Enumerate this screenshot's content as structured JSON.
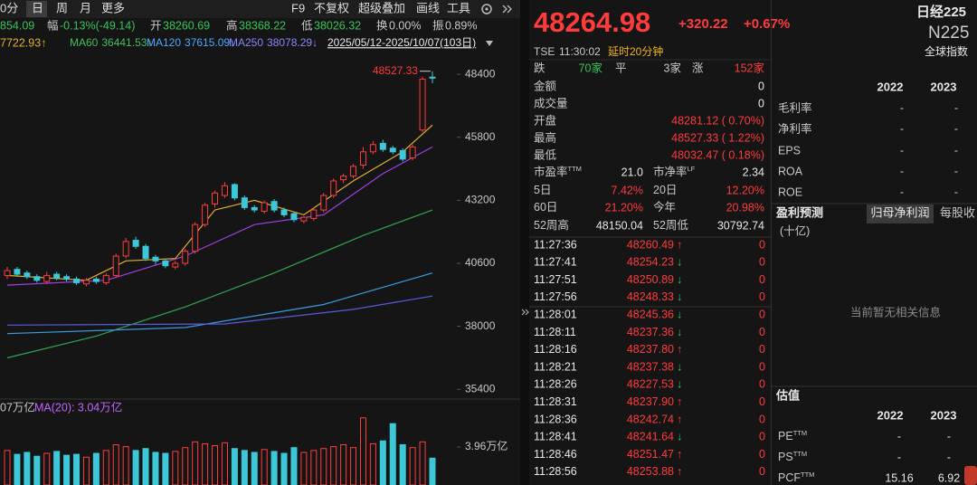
{
  "toolbar": {
    "periods": [
      "0分",
      "日",
      "周",
      "月",
      "更多"
    ],
    "tools": [
      "F9",
      "不复权",
      "超级叠加",
      "画线",
      "工具"
    ]
  },
  "stats_bar": {
    "last": "854.09",
    "items": [
      {
        "label": "幅",
        "value": "-0.13%(-49.14)"
      },
      {
        "label": "开",
        "value": "38260.69"
      },
      {
        "label": "高",
        "value": "38368.22"
      },
      {
        "label": "低",
        "value": "38026.32"
      },
      {
        "label": "换",
        "value": "0.00%"
      },
      {
        "label": "振",
        "value": "0.89%"
      }
    ]
  },
  "ma_legend": {
    "first": {
      "text": "7722.93↑",
      "color": "#e0b030"
    },
    "items": [
      {
        "label": "MA60",
        "value": "36441.53↑",
        "color": "#3fbf5f"
      },
      {
        "label": "MA120",
        "value": "37615.09↓",
        "color": "#4aa8ff"
      },
      {
        "label": "MA250",
        "value": "38078.29↓",
        "color": "#8a86ff"
      }
    ],
    "range": "2025/05/12-2025/10/07(103日)"
  },
  "chart_data": [
    {
      "type": "candlestick",
      "open": [
        40100,
        40350,
        40200,
        40050,
        39850,
        40150,
        40050,
        39950,
        39750,
        39950,
        39800,
        40100,
        40900,
        41550,
        41300,
        40850,
        40700,
        40450,
        40600,
        41100,
        42200,
        43050,
        43400,
        43850,
        43300,
        42900,
        42750,
        43150,
        42800,
        42650,
        42350,
        42450,
        42800,
        43400,
        44050,
        44200,
        44650,
        45200,
        45550,
        45350,
        45250,
        44950,
        46100,
        48281.12
      ],
      "high": [
        40450,
        40450,
        40300,
        40150,
        40250,
        40250,
        40150,
        40050,
        40000,
        40050,
        40200,
        41000,
        41650,
        41700,
        41400,
        40950,
        40800,
        40700,
        41200,
        42300,
        43100,
        43600,
        43950,
        43900,
        43400,
        43000,
        43200,
        43250,
        42900,
        42700,
        42550,
        42900,
        43500,
        44100,
        44300,
        44700,
        45400,
        45650,
        45700,
        45450,
        45350,
        45500,
        48300,
        48527.33
      ],
      "low": [
        39950,
        40050,
        39950,
        39800,
        39750,
        39900,
        39850,
        39700,
        39650,
        39750,
        39700,
        40000,
        40800,
        41200,
        40700,
        40550,
        40400,
        40350,
        40500,
        41000,
        42100,
        42900,
        43300,
        43200,
        42800,
        42700,
        42650,
        42700,
        42500,
        42300,
        42250,
        42350,
        42700,
        43300,
        43900,
        44100,
        44500,
        45100,
        45200,
        45100,
        44800,
        44850,
        46000,
        48032.47
      ],
      "close": [
        40300,
        40150,
        40050,
        39900,
        40100,
        40000,
        39950,
        39800,
        39900,
        39850,
        40100,
        40900,
        41500,
        41300,
        40800,
        40700,
        40500,
        40600,
        41100,
        42200,
        43000,
        43500,
        43800,
        43300,
        42900,
        42800,
        43100,
        42800,
        42600,
        42400,
        42500,
        42800,
        43400,
        44000,
        44200,
        44600,
        45200,
        45500,
        45300,
        45200,
        44900,
        45400,
        48200,
        48264.98
      ],
      "up_color": "#ff3d3d",
      "down_color": "#3cc8d8",
      "ylim": [
        35000,
        49150
      ],
      "yticks": [
        48400,
        45800,
        43200,
        40600,
        38000,
        35400
      ],
      "annotation": "48527.33",
      "lines": [
        {
          "color": "#2fa552",
          "x": [
            0,
            9,
            18,
            27,
            36,
            43
          ],
          "values": [
            36700,
            37600,
            38800,
            40200,
            41750,
            42800
          ]
        },
        {
          "color": "#3a9be0",
          "x": [
            0,
            18,
            32,
            43
          ],
          "values": [
            37700,
            37950,
            38900,
            40200
          ]
        },
        {
          "color": "#5a5adf",
          "x": [
            0,
            22,
            35,
            43
          ],
          "values": [
            38050,
            38100,
            38700,
            39250
          ]
        },
        {
          "color": "#a040e0",
          "x": [
            0,
            10,
            18,
            25,
            32,
            38,
            43
          ],
          "values": [
            39700,
            39900,
            40900,
            42200,
            42600,
            44300,
            45400
          ]
        },
        {
          "color": "#e0b030",
          "x": [
            0,
            8,
            12,
            17,
            21,
            25,
            30,
            35,
            40,
            43
          ],
          "values": [
            40100,
            39900,
            40700,
            40800,
            42800,
            43200,
            42600,
            44000,
            45200,
            46300
          ]
        }
      ]
    },
    {
      "type": "bar",
      "legend_texts": [
        "07万亿",
        "MA(20): 3.04万亿"
      ],
      "values": [
        3.6,
        3.2,
        3.4,
        3.0,
        3.3,
        3.5,
        3.1,
        3.2,
        2.9,
        3.3,
        3.6,
        4.2,
        4.0,
        3.6,
        3.8,
        3.4,
        3.3,
        3.5,
        3.9,
        4.5,
        4.3,
        4.1,
        4.4,
        3.8,
        3.6,
        3.4,
        3.7,
        3.5,
        3.3,
        3.9,
        3.4,
        3.6,
        3.8,
        4.0,
        4.2,
        3.9,
        7.0,
        4.3,
        4.6,
        6.4,
        4.2,
        3.9,
        4.5,
        2.8
      ],
      "ylim": [
        0,
        7.36
      ],
      "yticks": [
        {
          "value": 3.96,
          "label": "3.96万亿"
        }
      ]
    }
  ],
  "quote": {
    "price": "48264.98",
    "change": "+320.22",
    "pct": "+0.67%",
    "exchange": "TSE",
    "time": "11:30:02",
    "delay": "延时20分钟",
    "name": "日经225",
    "code": "N225",
    "market": "全球指数",
    "breadth": [
      {
        "label": "跌",
        "value": "70家"
      },
      {
        "label": "平",
        "value": "3家"
      },
      {
        "label": "涨",
        "value": "152家"
      }
    ],
    "rows": [
      {
        "label": "金额",
        "value": "0"
      },
      {
        "label": "成交量",
        "value": "0"
      },
      {
        "label": "开盘",
        "value": "48281.12 ( 0.70%)"
      },
      {
        "label": "最高",
        "value": "48527.33 ( 1.22%)"
      },
      {
        "label": "最低",
        "value": "48032.47 ( 0.18%)"
      }
    ],
    "pairs": [
      [
        {
          "label": "市盈率",
          "sup": "TTM",
          "value": "21.0"
        },
        {
          "label": "市净率",
          "sup": "LF",
          "value": "2.34"
        }
      ],
      [
        {
          "label": "5日",
          "value": "7.42%"
        },
        {
          "label": "20日",
          "value": "12.20%"
        }
      ],
      [
        {
          "label": "60日",
          "value": "21.20%"
        },
        {
          "label": "今年",
          "value": "20.98%"
        }
      ],
      [
        {
          "label": "52周高",
          "value": "48150.04"
        },
        {
          "label": "52周低",
          "value": "30792.74"
        }
      ]
    ]
  },
  "ticks": [
    {
      "time": "11:27:36",
      "price": "48260.49",
      "dir": "↑",
      "volume": "0"
    },
    {
      "time": "11:27:41",
      "price": "48254.23",
      "dir": "↓",
      "volume": "0"
    },
    {
      "time": "11:27:51",
      "price": "48250.89",
      "dir": "↓",
      "volume": "0"
    },
    {
      "time": "11:27:56",
      "price": "48248.33",
      "dir": "↓",
      "volume": "0"
    },
    {
      "time": "11:28:01",
      "price": "48245.36",
      "dir": "↓",
      "volume": "0"
    },
    {
      "time": "11:28:11",
      "price": "48237.36",
      "dir": "↓",
      "volume": "0"
    },
    {
      "time": "11:28:16",
      "price": "48237.80",
      "dir": "↑",
      "volume": "0"
    },
    {
      "time": "11:28:21",
      "price": "48237.38",
      "dir": "↓",
      "volume": "0"
    },
    {
      "time": "11:28:26",
      "price": "48227.53",
      "dir": "↓",
      "volume": "0"
    },
    {
      "time": "11:28:31",
      "price": "48237.90",
      "dir": "↑",
      "volume": "0"
    },
    {
      "time": "11:28:36",
      "price": "48242.74",
      "dir": "↑",
      "volume": "0"
    },
    {
      "time": "11:28:41",
      "price": "48241.64",
      "dir": "↓",
      "volume": "0"
    },
    {
      "time": "11:28:46",
      "price": "48251.47",
      "dir": "↑",
      "volume": "0"
    },
    {
      "time": "11:28:56",
      "price": "48253.88",
      "dir": "↑",
      "volume": "0"
    }
  ],
  "fundamentals": {
    "years": [
      "2022",
      "2023"
    ],
    "rows": [
      {
        "label": "毛利率",
        "values": [
          "-",
          "-"
        ]
      },
      {
        "label": "净利率",
        "values": [
          "-",
          "-"
        ]
      },
      {
        "label": "EPS",
        "values": [
          "-",
          "-"
        ]
      },
      {
        "label": "ROA",
        "values": [
          "-",
          "-"
        ]
      },
      {
        "label": "ROE",
        "values": [
          "-",
          "-"
        ]
      }
    ],
    "forecast": {
      "title": "盈利预测",
      "tabs": [
        "归母净利润",
        "每股收"
      ],
      "unit": "(十亿)",
      "empty": "当前暂无相关信息"
    },
    "valuation": {
      "title": "估值",
      "years": [
        "2022",
        "2023"
      ],
      "rows": [
        {
          "label": "PE",
          "sup": "TTM",
          "values": [
            "-",
            "-"
          ]
        },
        {
          "label": "PS",
          "sup": "TTM",
          "values": [
            "-",
            "-"
          ]
        },
        {
          "label": "PCF",
          "sup": "TTM",
          "values": [
            "15.16",
            "6.92"
          ]
        }
      ]
    }
  }
}
